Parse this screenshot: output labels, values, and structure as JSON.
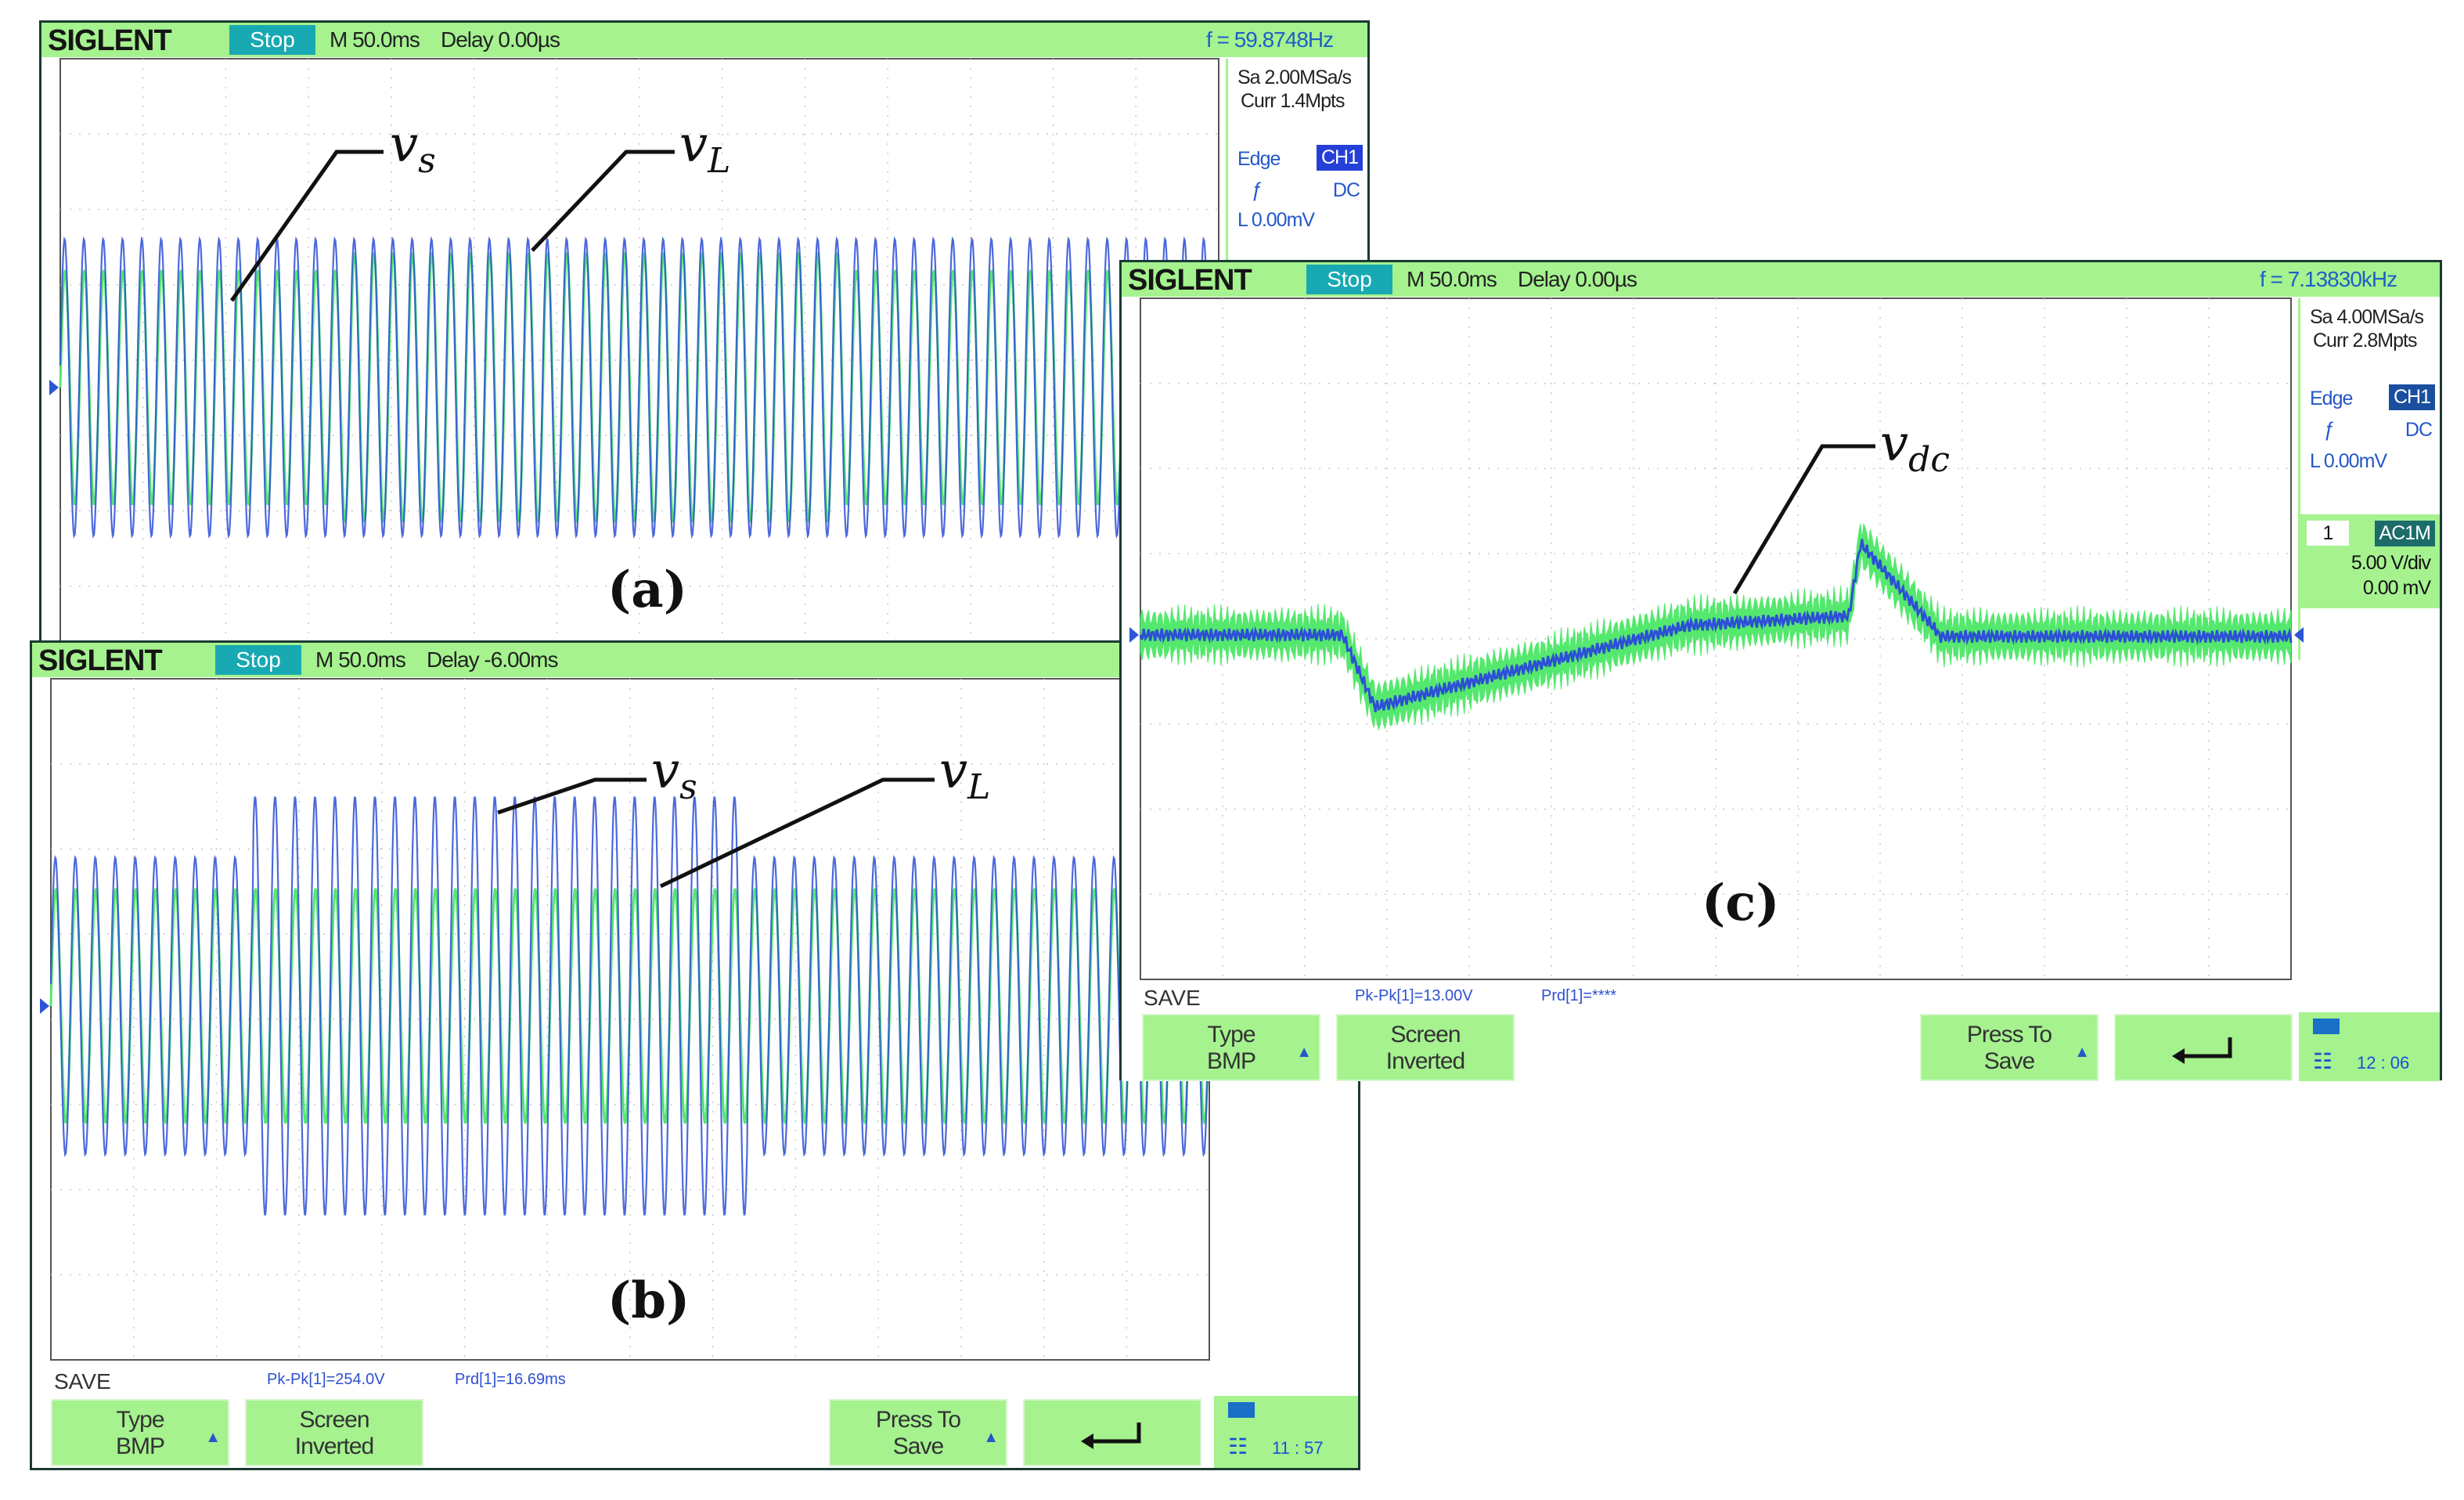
{
  "scope_a": {
    "logo": "SIGLENT",
    "status": "Stop",
    "timebase": "M 50.0ms",
    "delay": "Delay 0.00µs",
    "frequency": "f = 59.8748Hz",
    "sample_rate": "Sa 2.00MSa/s",
    "memory_depth": "Curr 1.4Mpts",
    "trigger_type": "Edge",
    "trigger_source": "CH1",
    "trigger_coupling": "DC",
    "trigger_level": "L  0.00mV",
    "signal_labels": {
      "vs": "v",
      "vs_sub": "s",
      "vL": "v",
      "vL_sub": "L"
    },
    "caption": "(a)"
  },
  "scope_b": {
    "logo": "SIGLENT",
    "status": "Stop",
    "timebase": "M 50.0ms",
    "delay": "Delay -6.00ms",
    "signal_labels": {
      "vs": "v",
      "vs_sub": "s",
      "vL": "v",
      "vL_sub": "L"
    },
    "caption": "(b)",
    "menu_title": "SAVE",
    "measure_pkpk": "Pk-Pk[1]=254.0V",
    "measure_prd": "Prd[1]=16.69ms",
    "softkeys": {
      "type_line1": "Type",
      "type_line2": "BMP",
      "screen_line1": "Screen",
      "screen_line2": "Inverted",
      "press_line1": "Press To",
      "press_line2": "Save",
      "back_glyph": "⮌"
    },
    "time": "11 : 57"
  },
  "scope_c": {
    "logo": "SIGLENT",
    "status": "Stop",
    "timebase": "M 50.0ms",
    "delay": "Delay 0.00µs",
    "frequency": "f = 7.13830kHz",
    "sample_rate": "Sa 4.00MSa/s",
    "memory_depth": "Curr 2.8Mpts",
    "trigger_type": "Edge",
    "trigger_source": "CH1",
    "trigger_coupling": "DC",
    "trigger_level": "L  0.00mV",
    "channel_number": "1",
    "channel_coupling": "AC1M",
    "volts_per_div": "5.00 V/div",
    "offset": "0.00 mV",
    "signal_label": "v",
    "signal_label_sub": "dc",
    "caption": "(c)",
    "menu_title": "SAVE",
    "measure_pkpk": "Pk-Pk[1]=13.00V",
    "measure_prd": "Prd[1]=****",
    "softkeys": {
      "type_line1": "Type",
      "type_line2": "BMP",
      "screen_line1": "Screen",
      "screen_line2": "Inverted",
      "press_line1": "Press To",
      "press_line2": "Save",
      "back_glyph": "⮌"
    },
    "time": "12 : 06"
  },
  "colors": {
    "trace_ch1": "#2d4fd6",
    "trace_ch2": "#55e86e",
    "bar_green": "#a5f28f",
    "status_teal": "#18a9b2"
  }
}
